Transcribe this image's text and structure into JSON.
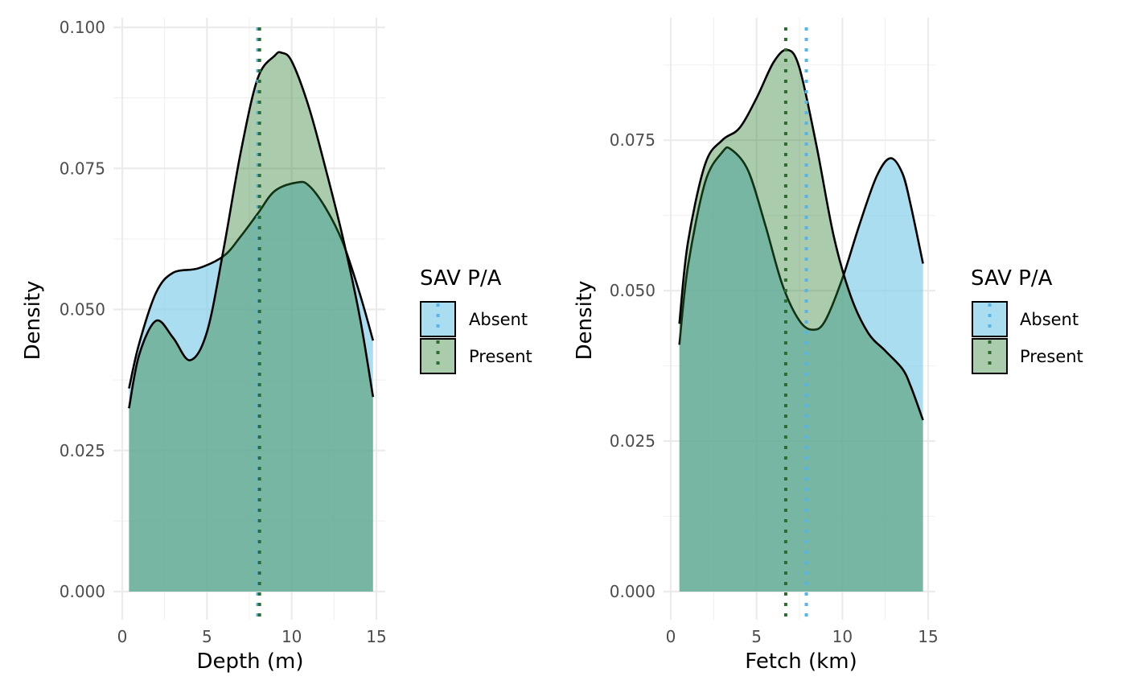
{
  "legend": {
    "title": "SAV P/A",
    "entries": [
      "Absent",
      "Present"
    ]
  },
  "colors": {
    "absent_fill": "#87CEEB",
    "present_fill": "#2E7D32",
    "absent_mean": "#56B4E9",
    "present_mean": "#2E6B2E",
    "grid_major": "#EBEBEB",
    "grid_minor": "#F2F2F2"
  },
  "chart_data": [
    {
      "type": "area",
      "subtype": "density",
      "xlabel": "Depth (m)",
      "ylabel": "Density",
      "xlim": [
        0,
        15
      ],
      "ylim": [
        0,
        0.1
      ],
      "xticks": [
        0,
        5,
        10,
        15
      ],
      "yticks": [
        0,
        0.025,
        0.05,
        0.075,
        0.1
      ],
      "ytick_labels": [
        "0.000",
        "0.025",
        "0.050",
        "0.075",
        "0.100"
      ],
      "grid": true,
      "legend_position": "right",
      "series": [
        {
          "name": "Absent",
          "mean": 8.0,
          "points": [
            [
              0.4,
              0.036
            ],
            [
              1.0,
              0.044
            ],
            [
              2.0,
              0.053
            ],
            [
              3.0,
              0.0565
            ],
            [
              4.5,
              0.0573
            ],
            [
              6.0,
              0.0595
            ],
            [
              7.0,
              0.063
            ],
            [
              8.0,
              0.067
            ],
            [
              9.0,
              0.071
            ],
            [
              10.3,
              0.0725
            ],
            [
              11.0,
              0.072
            ],
            [
              12.0,
              0.068
            ],
            [
              13.0,
              0.062
            ],
            [
              14.0,
              0.053
            ],
            [
              14.8,
              0.0445
            ]
          ]
        },
        {
          "name": "Present",
          "mean": 8.1,
          "points": [
            [
              0.4,
              0.0325
            ],
            [
              1.0,
              0.042
            ],
            [
              2.0,
              0.048
            ],
            [
              3.0,
              0.045
            ],
            [
              4.0,
              0.041
            ],
            [
              5.0,
              0.046
            ],
            [
              6.0,
              0.061
            ],
            [
              7.0,
              0.078
            ],
            [
              8.0,
              0.091
            ],
            [
              9.0,
              0.095
            ],
            [
              9.4,
              0.0955
            ],
            [
              10.0,
              0.094
            ],
            [
              11.0,
              0.086
            ],
            [
              12.0,
              0.075
            ],
            [
              13.0,
              0.063
            ],
            [
              14.0,
              0.049
            ],
            [
              14.8,
              0.0345
            ]
          ]
        }
      ]
    },
    {
      "type": "area",
      "subtype": "density",
      "xlabel": "Fetch (km)",
      "ylabel": "Density",
      "xlim": [
        0,
        15
      ],
      "ylim": [
        0,
        0.09
      ],
      "xticks": [
        0,
        5,
        10,
        15
      ],
      "yticks": [
        0,
        0.025,
        0.05,
        0.075
      ],
      "ytick_labels": [
        "0.000",
        "0.025",
        "0.050",
        "0.075"
      ],
      "grid": true,
      "legend_position": "right",
      "series": [
        {
          "name": "Absent",
          "mean": 7.9,
          "points": [
            [
              0.5,
              0.041
            ],
            [
              1.0,
              0.054
            ],
            [
              2.0,
              0.068
            ],
            [
              3.0,
              0.073
            ],
            [
              3.5,
              0.0735
            ],
            [
              4.5,
              0.07
            ],
            [
              5.5,
              0.061
            ],
            [
              6.5,
              0.051
            ],
            [
              7.5,
              0.045
            ],
            [
              8.3,
              0.0435
            ],
            [
              9.0,
              0.045
            ],
            [
              10.0,
              0.052
            ],
            [
              11.0,
              0.061
            ],
            [
              12.0,
              0.069
            ],
            [
              12.8,
              0.072
            ],
            [
              13.5,
              0.0695
            ],
            [
              14.0,
              0.064
            ],
            [
              14.7,
              0.0545
            ]
          ]
        },
        {
          "name": "Present",
          "mean": 6.7,
          "points": [
            [
              0.5,
              0.0445
            ],
            [
              1.0,
              0.058
            ],
            [
              2.0,
              0.071
            ],
            [
              3.0,
              0.075
            ],
            [
              4.0,
              0.077
            ],
            [
              5.0,
              0.082
            ],
            [
              6.0,
              0.088
            ],
            [
              6.8,
              0.09
            ],
            [
              7.5,
              0.087
            ],
            [
              8.5,
              0.074
            ],
            [
              9.5,
              0.059
            ],
            [
              10.5,
              0.049
            ],
            [
              11.5,
              0.043
            ],
            [
              12.5,
              0.04
            ],
            [
              13.5,
              0.037
            ],
            [
              14.0,
              0.034
            ],
            [
              14.7,
              0.0285
            ]
          ]
        }
      ]
    }
  ]
}
